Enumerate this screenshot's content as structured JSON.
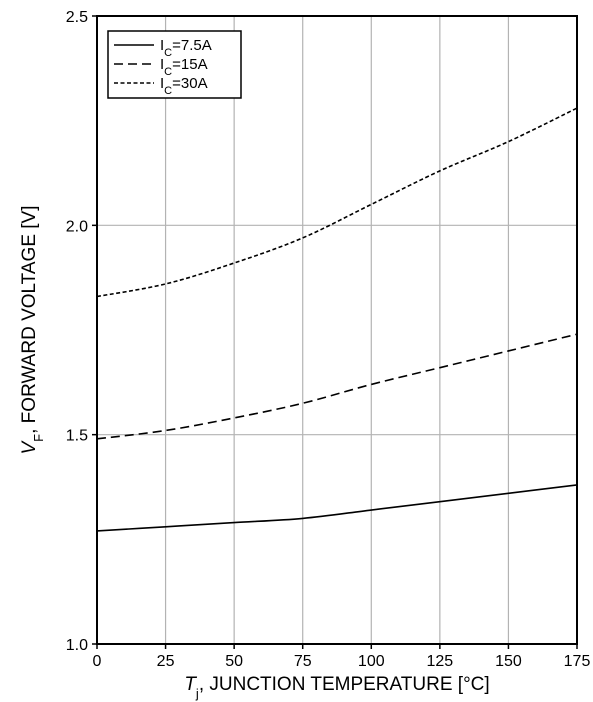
{
  "chart_data": {
    "type": "line",
    "title": "",
    "xlabel": "T_j, JUNCTION TEMPERATURE [°C]",
    "xlabel_parts": {
      "symbol": "T",
      "subscript": "j",
      "rest": ", JUNCTION TEMPERATURE [°C]"
    },
    "ylabel": "V_F, FORWARD VOLTAGE [V]",
    "ylabel_parts": {
      "symbol": "V",
      "subscript": "F",
      "rest": ", FORWARD VOLTAGE [V]"
    },
    "xlim": [
      0,
      175
    ],
    "ylim": [
      1.0,
      2.5
    ],
    "x_ticks": [
      0,
      25,
      50,
      75,
      100,
      125,
      150,
      175
    ],
    "x_tick_labels": [
      "0",
      "25",
      "50",
      "75",
      "100",
      "125",
      "150",
      "175"
    ],
    "y_ticks": [
      1.0,
      1.5,
      2.0,
      2.5
    ],
    "y_tick_labels": [
      "1.0",
      "1.5",
      "2.0",
      "2.5"
    ],
    "grid": true,
    "legend_position": "top-left",
    "series": [
      {
        "name": "IC=7.5A",
        "name_parts": {
          "main": "I",
          "sub": "C",
          "rest": "=7.5A"
        },
        "dash": "solid",
        "color": "#000000",
        "x": [
          0,
          25,
          50,
          75,
          100,
          125,
          150,
          175
        ],
        "y": [
          1.27,
          1.28,
          1.29,
          1.3,
          1.32,
          1.34,
          1.36,
          1.38
        ]
      },
      {
        "name": "IC=15A",
        "name_parts": {
          "main": "I",
          "sub": "C",
          "rest": "=15A"
        },
        "dash": "dashed",
        "color": "#000000",
        "x": [
          0,
          25,
          50,
          75,
          100,
          125,
          150,
          175
        ],
        "y": [
          1.49,
          1.51,
          1.54,
          1.575,
          1.62,
          1.66,
          1.7,
          1.74
        ]
      },
      {
        "name": "IC=30A",
        "name_parts": {
          "main": "I",
          "sub": "C",
          "rest": "=30A"
        },
        "dash": "dotted",
        "color": "#000000",
        "x": [
          0,
          25,
          50,
          75,
          100,
          125,
          150,
          175
        ],
        "y": [
          1.83,
          1.86,
          1.91,
          1.97,
          2.05,
          2.13,
          2.2,
          2.28
        ]
      }
    ]
  }
}
